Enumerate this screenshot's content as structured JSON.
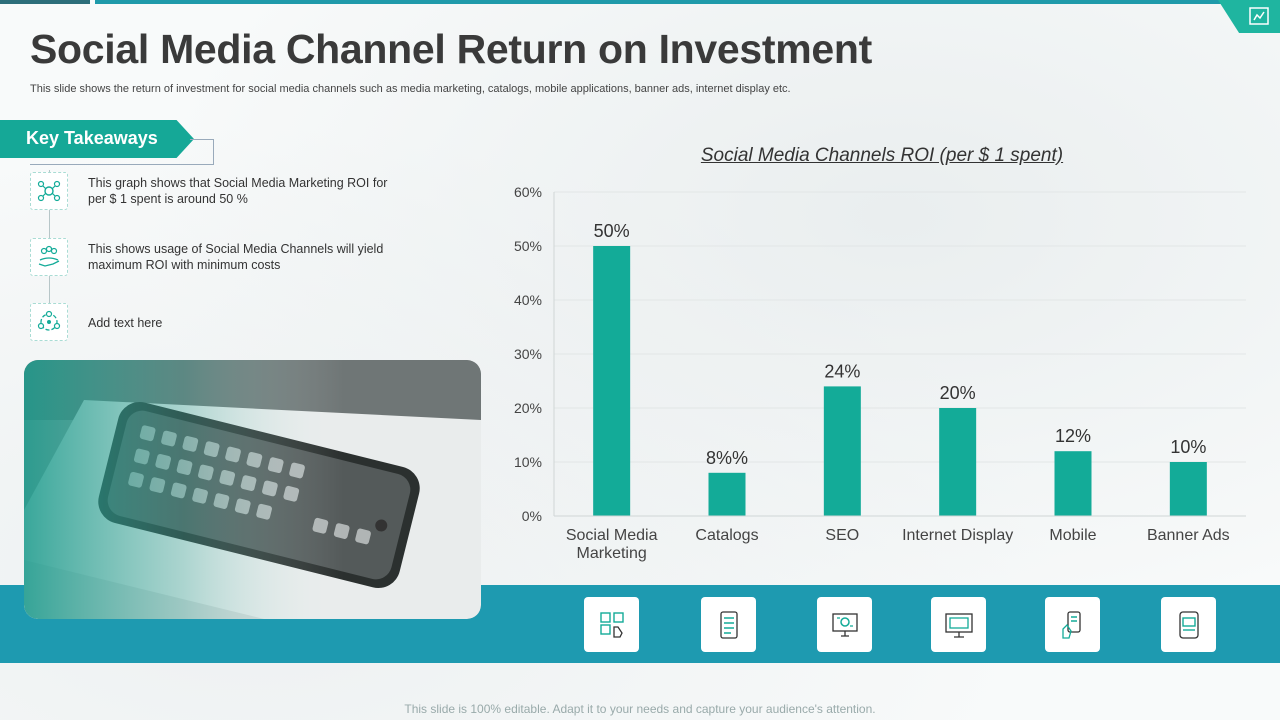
{
  "slide": {
    "title": "Social Media Channel Return on Investment",
    "subtitle": "This slide shows the return of investment for social media  channels such as media marketing, catalogs, mobile applications, banner ads, internet display etc.",
    "footer": "This slide is 100% editable. Adapt it to your needs and capture your audience's attention."
  },
  "takeaways": {
    "heading": "Key Takeaways",
    "items": [
      {
        "icon": "social-network-icon",
        "text": "This graph shows that Social Media Marketing ROI for per $ 1 spent is around  50 %"
      },
      {
        "icon": "hand-people-icon",
        "text": "This shows usage of Social Media Channels  will yield maximum ROI  with minimum costs"
      },
      {
        "icon": "network-cycle-icon",
        "text": "Add text here"
      }
    ]
  },
  "bottom_icons": [
    "social-media-hand-icon",
    "catalog-list-icon",
    "seo-monitor-icon",
    "internet-display-icon",
    "mobile-hand-icon",
    "banner-ads-icon"
  ],
  "colors": {
    "accent": "#15a897",
    "bar": "#13ab98",
    "band": "#1e9ab0",
    "title": "#3a3a3a"
  },
  "chart_data": {
    "type": "bar",
    "title": "Social Media Channels ROI  (per $ 1 spent)",
    "categories": [
      "Social Media Marketing",
      "Catalogs",
      "SEO",
      "Internet Display",
      "Mobile",
      "Banner Ads"
    ],
    "category_lines": [
      [
        "Social Media",
        "Marketing"
      ],
      [
        "Catalogs"
      ],
      [
        "SEO"
      ],
      [
        "Internet Display"
      ],
      [
        "Mobile"
      ],
      [
        "Banner Ads"
      ]
    ],
    "values": [
      50,
      8,
      24,
      20,
      12,
      10
    ],
    "data_labels": [
      "50%",
      "8%%",
      "24%",
      "20%",
      "12%",
      "10%"
    ],
    "ylim": [
      0,
      60
    ],
    "yticks": [
      0,
      10,
      20,
      30,
      40,
      50,
      60
    ],
    "ytick_labels": [
      "0%",
      "10%",
      "20%",
      "30%",
      "40%",
      "50%",
      "60%"
    ],
    "xlabel": "",
    "ylabel": "",
    "grid": true,
    "legend": "none"
  }
}
